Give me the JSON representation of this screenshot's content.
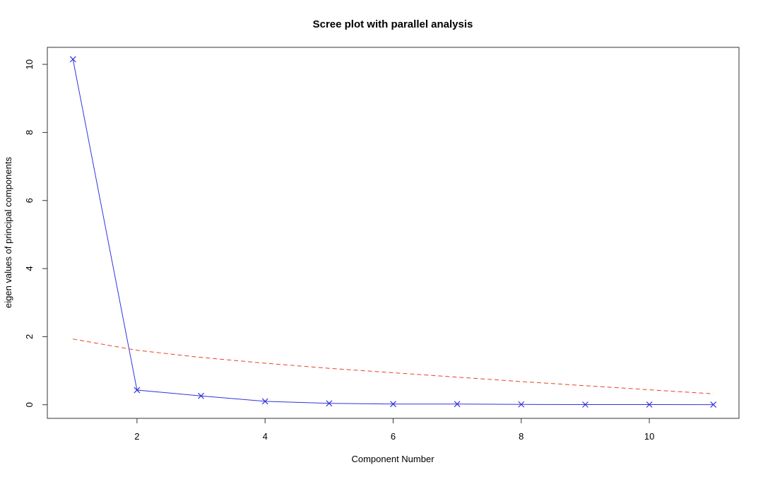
{
  "chart_data": {
    "type": "line",
    "title": "Scree plot with parallel analysis",
    "xlabel": "Component Number",
    "ylabel": "eigen values of principal components",
    "xlim": [
      0.6,
      11.4
    ],
    "ylim": [
      -0.4,
      10.5
    ],
    "x_ticks": [
      2,
      4,
      6,
      8,
      10
    ],
    "y_ticks": [
      0,
      2,
      4,
      6,
      8,
      10
    ],
    "grid": false,
    "series": [
      {
        "style": "solid",
        "marker": "x",
        "color": "#3333dd",
        "x": [
          1,
          2,
          3,
          4,
          5,
          6,
          7,
          8,
          9,
          10,
          11
        ],
        "values": [
          10.15,
          0.43,
          0.26,
          0.1,
          0.04,
          0.02,
          0.02,
          0.01,
          0.005,
          0.005,
          0.003
        ]
      },
      {
        "style": "dashed",
        "marker": "none",
        "color": "#e8402a",
        "x": [
          1,
          2,
          3,
          4,
          5,
          6,
          7,
          8,
          9,
          10,
          11
        ],
        "values": [
          1.93,
          1.6,
          1.39,
          1.22,
          1.07,
          0.94,
          0.81,
          0.68,
          0.56,
          0.44,
          0.32
        ]
      }
    ]
  }
}
